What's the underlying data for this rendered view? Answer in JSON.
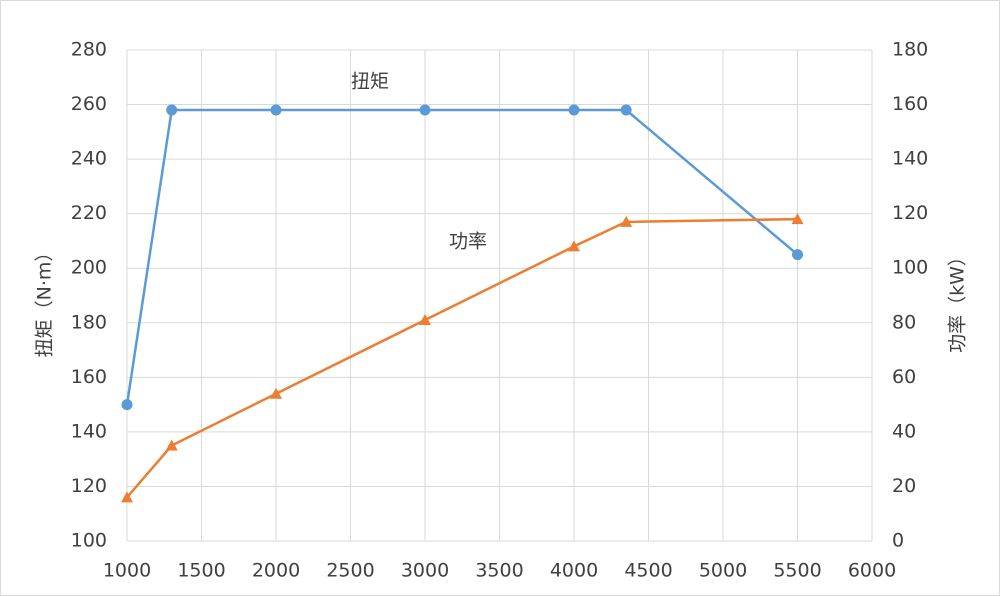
{
  "chart_data": {
    "type": "line",
    "x": [
      1000,
      1300,
      2000,
      3000,
      4000,
      4350,
      5500
    ],
    "series": [
      {
        "name": "扭矩",
        "color": "#5b9bd5",
        "marker": "circle",
        "axis": "y",
        "values": [
          150,
          258,
          258,
          258,
          258,
          258,
          205
        ]
      },
      {
        "name": "功率",
        "color": "#ed7d31",
        "marker": "triangle",
        "axis": "y2",
        "values": [
          16,
          35,
          54,
          81,
          108,
          117,
          118
        ]
      }
    ],
    "ylabel": "扭矩（N·m）",
    "y2label": "功率（kW）",
    "xlim": [
      1000,
      6000
    ],
    "xticks": [
      1000,
      1500,
      2000,
      2500,
      3000,
      3500,
      4000,
      4500,
      5000,
      5500,
      6000
    ],
    "ylim": [
      100,
      280
    ],
    "yticks": [
      100,
      120,
      140,
      160,
      180,
      200,
      220,
      240,
      260,
      280
    ],
    "y2lim": [
      0,
      180
    ],
    "y2ticks": [
      0,
      20,
      40,
      60,
      80,
      100,
      120,
      140,
      160,
      180
    ],
    "grid": true
  }
}
